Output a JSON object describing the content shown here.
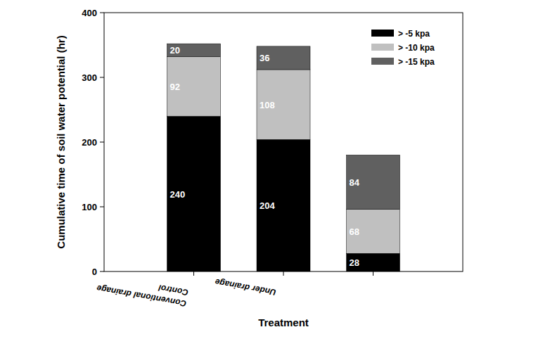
{
  "chart_data": {
    "type": "bar",
    "stacked": true,
    "x_label": "Treatment",
    "y_label": "Cumulative time of soil water potential (hr)",
    "categories": [
      "Conventional drainage\nControl",
      "Under drainage",
      null
    ],
    "series": [
      {
        "name": "> -5 kpa",
        "color": "#000000",
        "values": [
          240,
          204,
          28
        ]
      },
      {
        "name": "> -10 kpa",
        "color": "#c0c0c0",
        "values": [
          92,
          108,
          68
        ]
      },
      {
        "name": "> -15 kpa",
        "color": "#606060",
        "values": [
          20,
          36,
          84
        ]
      }
    ],
    "ylim": [
      0,
      400
    ],
    "yticks": [
      0,
      100,
      200,
      300,
      400
    ],
    "grid": false,
    "legend": "upper right",
    "data_labels": true
  }
}
